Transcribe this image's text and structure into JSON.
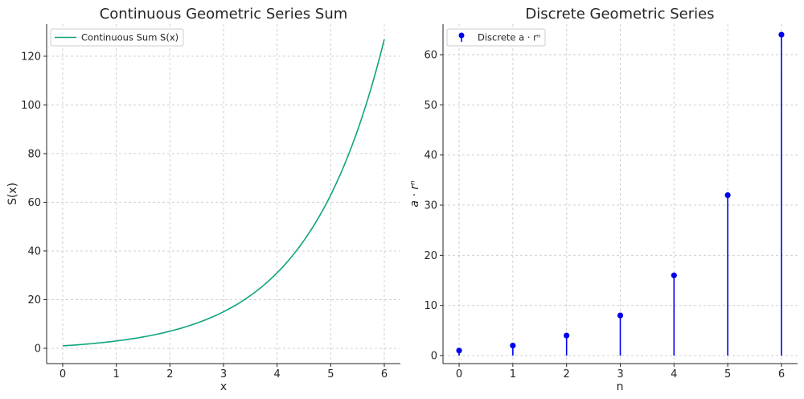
{
  "chart_data": [
    {
      "type": "line",
      "title": "Continuous Geometric Series Sum",
      "xlabel": "x",
      "ylabel": "S(x)",
      "xlim": [
        -0.3,
        6.3
      ],
      "ylim": [
        -6.3,
        133.2
      ],
      "xticks": [
        0,
        1,
        2,
        3,
        4,
        5,
        6
      ],
      "yticks": [
        0,
        20,
        40,
        60,
        80,
        100,
        120
      ],
      "grid": true,
      "legend": "top-left",
      "series": [
        {
          "name": "Continuous Sum S(x)",
          "color": "#10a37f",
          "function": "2^(x+1) - 1",
          "x": [
            0,
            0.5,
            1,
            1.5,
            2,
            2.5,
            3,
            3.5,
            4,
            4.5,
            5,
            5.5,
            6
          ],
          "y": [
            1,
            1.83,
            3,
            4.66,
            7,
            10.31,
            15,
            21.63,
            31,
            44.25,
            63,
            89.51,
            127
          ]
        }
      ]
    },
    {
      "type": "stem",
      "title": "Discrete Geometric Series",
      "xlabel": "n",
      "ylabel": "a · rⁿ",
      "xlim": [
        -0.3,
        6.3
      ],
      "ylim": [
        -1.6,
        66.1
      ],
      "xticks": [
        0,
        1,
        2,
        3,
        4,
        5,
        6
      ],
      "yticks": [
        0,
        10,
        20,
        30,
        40,
        50,
        60
      ],
      "grid": true,
      "legend": "top-left",
      "series": [
        {
          "name": "Discrete a · rⁿ",
          "color": "#0000ee",
          "x": [
            0,
            1,
            2,
            3,
            4,
            5,
            6
          ],
          "y": [
            1,
            2,
            4,
            8,
            16,
            32,
            64
          ]
        }
      ]
    }
  ]
}
